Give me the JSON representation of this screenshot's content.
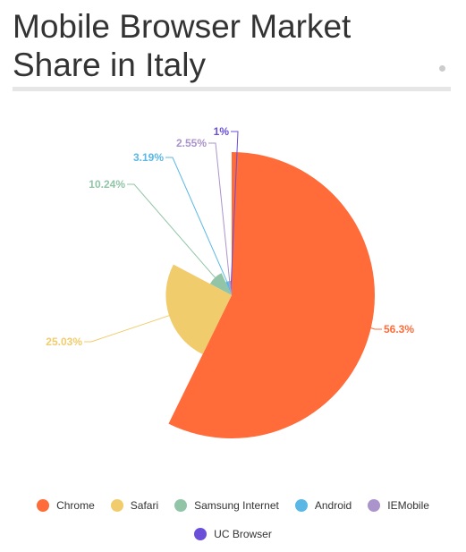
{
  "title": "Mobile Browser Market Share in Italy",
  "chart_data": {
    "type": "pie",
    "title": "Mobile Browser Market Share in Italy",
    "series": [
      {
        "name": "Chrome",
        "value": 56.3,
        "label": "56.3%",
        "color": "#ff6b39"
      },
      {
        "name": "Safari",
        "value": 25.03,
        "label": "25.03%",
        "color": "#f0cc6c"
      },
      {
        "name": "Samsung Internet",
        "value": 10.24,
        "label": "10.24%",
        "color": "#92c5a7"
      },
      {
        "name": "Android",
        "value": 3.19,
        "label": "3.19%",
        "color": "#5bb8e5"
      },
      {
        "name": "IEMobile",
        "value": 2.55,
        "label": "2.55%",
        "color": "#ab93cc"
      },
      {
        "name": "UC Browser",
        "value": 1,
        "label": "1%",
        "color": "#6b4fd8"
      }
    ],
    "legend_position": "bottom"
  }
}
